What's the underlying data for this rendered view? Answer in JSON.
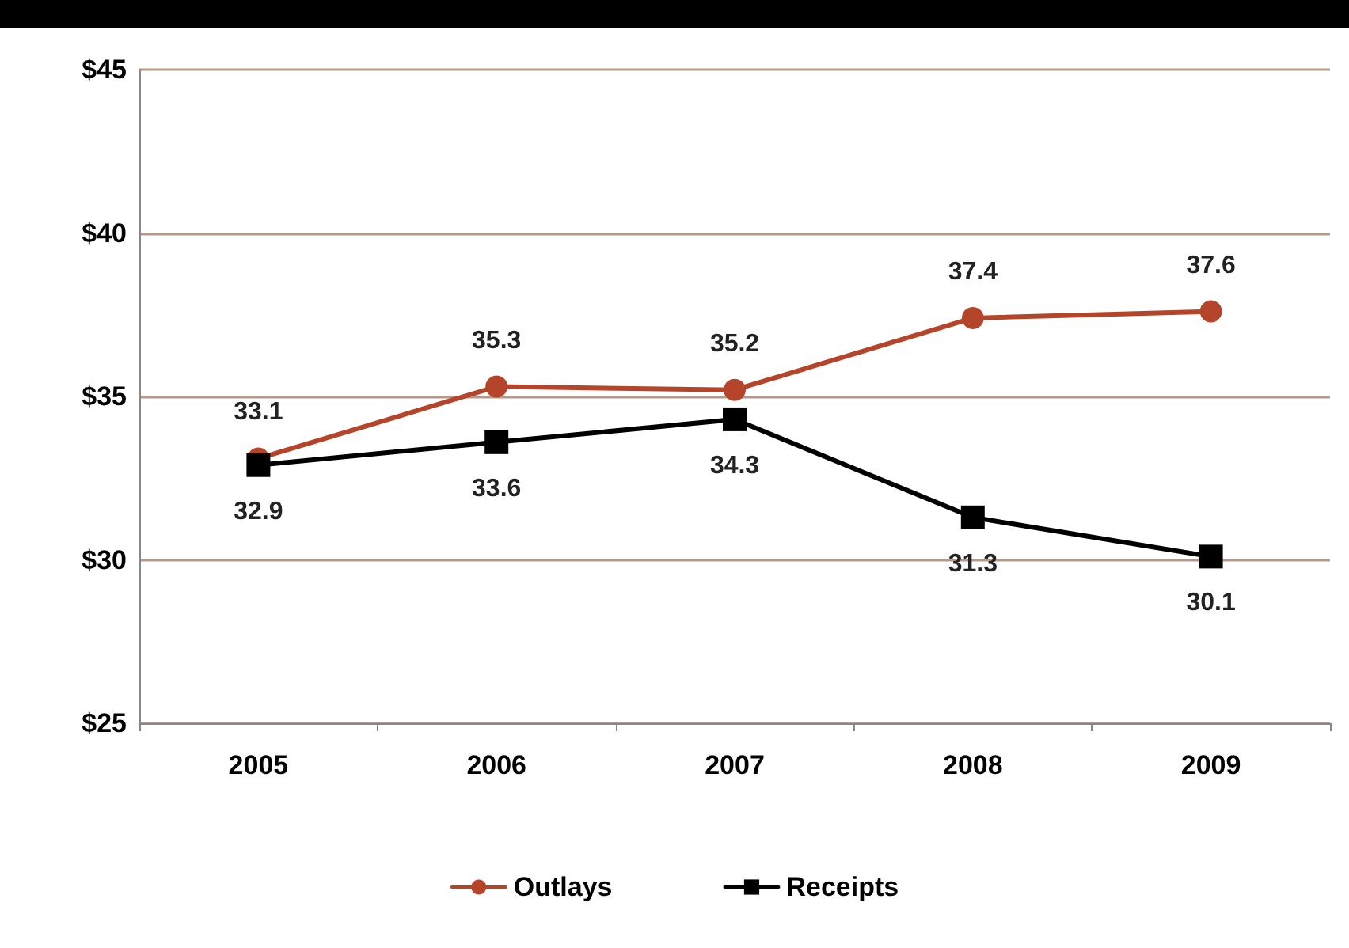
{
  "chart_data": {
    "type": "line",
    "categories": [
      "2005",
      "2006",
      "2007",
      "2008",
      "2009"
    ],
    "series": [
      {
        "name": "Outlays",
        "color": "#b5452a",
        "marker": "circle",
        "values": [
          33.1,
          35.3,
          35.2,
          37.4,
          37.6
        ]
      },
      {
        "name": "Receipts",
        "color": "#000000",
        "marker": "square",
        "values": [
          32.9,
          33.6,
          34.3,
          31.3,
          30.1
        ]
      }
    ],
    "ylim": [
      25,
      45
    ],
    "yticks": [
      {
        "value": 25,
        "label": "$25"
      },
      {
        "value": 30,
        "label": "$30"
      },
      {
        "value": 35,
        "label": "$35"
      },
      {
        "value": 40,
        "label": "$40"
      },
      {
        "value": 45,
        "label": "$45"
      }
    ],
    "grid": "y",
    "legend": "bottom",
    "data_labels": true,
    "line_style": "solid"
  }
}
